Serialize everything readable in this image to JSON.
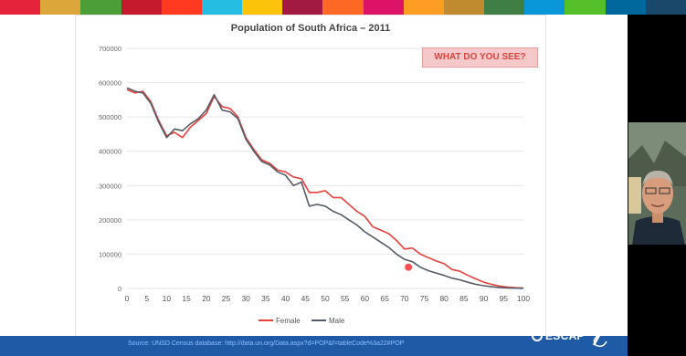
{
  "stripe_colors": [
    "#e5243b",
    "#dda63a",
    "#4c9f38",
    "#c5192d",
    "#ff3a21",
    "#26bde2",
    "#fcc30b",
    "#a21942",
    "#fd6925",
    "#dd1367",
    "#fd9d24",
    "#bf8b2e",
    "#3f7e44",
    "#0a97d9",
    "#56c02b",
    "#00689d",
    "#19486a"
  ],
  "slide": {
    "badge": "WHAT DO YOU SEE?",
    "source": "Source: UNSD Census database: http://data.un.org/Data.aspx?d=POP&f=tableCode%3a22#POP",
    "logo_text": "ESCAP"
  },
  "chart_data": {
    "type": "line",
    "title": "Population of South Africa – 2011",
    "ylim": [
      0,
      700000
    ],
    "xlim": [
      0,
      100
    ],
    "yticks": [
      0,
      100000,
      200000,
      300000,
      400000,
      500000,
      600000,
      700000
    ],
    "xticks": [
      0,
      5,
      10,
      15,
      20,
      25,
      30,
      35,
      40,
      45,
      50,
      55,
      60,
      65,
      70,
      75,
      80,
      85,
      90,
      95,
      100
    ],
    "legend_position": "bottom",
    "series": [
      {
        "name": "Female",
        "color": "#e8403a",
        "points": [
          [
            0,
            580000
          ],
          [
            2,
            570000
          ],
          [
            4,
            575000
          ],
          [
            6,
            545000
          ],
          [
            8,
            490000
          ],
          [
            10,
            445000
          ],
          [
            12,
            455000
          ],
          [
            14,
            440000
          ],
          [
            16,
            470000
          ],
          [
            18,
            490000
          ],
          [
            20,
            510000
          ],
          [
            22,
            560000
          ],
          [
            24,
            530000
          ],
          [
            26,
            525000
          ],
          [
            28,
            500000
          ],
          [
            30,
            440000
          ],
          [
            32,
            405000
          ],
          [
            34,
            375000
          ],
          [
            36,
            365000
          ],
          [
            38,
            345000
          ],
          [
            40,
            340000
          ],
          [
            42,
            325000
          ],
          [
            44,
            320000
          ],
          [
            46,
            280000
          ],
          [
            48,
            280000
          ],
          [
            50,
            285000
          ],
          [
            52,
            265000
          ],
          [
            54,
            265000
          ],
          [
            56,
            245000
          ],
          [
            58,
            225000
          ],
          [
            60,
            210000
          ],
          [
            62,
            180000
          ],
          [
            64,
            170000
          ],
          [
            66,
            160000
          ],
          [
            68,
            140000
          ],
          [
            70,
            115000
          ],
          [
            72,
            118000
          ],
          [
            74,
            100000
          ],
          [
            76,
            90000
          ],
          [
            78,
            80000
          ],
          [
            80,
            72000
          ],
          [
            82,
            55000
          ],
          [
            84,
            50000
          ],
          [
            86,
            38000
          ],
          [
            88,
            28000
          ],
          [
            90,
            18000
          ],
          [
            92,
            12000
          ],
          [
            94,
            7000
          ],
          [
            96,
            4000
          ],
          [
            98,
            2000
          ],
          [
            100,
            1000
          ]
        ]
      },
      {
        "name": "Male",
        "color": "#555b66",
        "points": [
          [
            0,
            585000
          ],
          [
            2,
            575000
          ],
          [
            4,
            570000
          ],
          [
            6,
            540000
          ],
          [
            8,
            485000
          ],
          [
            10,
            440000
          ],
          [
            12,
            465000
          ],
          [
            14,
            460000
          ],
          [
            16,
            480000
          ],
          [
            18,
            495000
          ],
          [
            20,
            520000
          ],
          [
            22,
            565000
          ],
          [
            24,
            520000
          ],
          [
            26,
            515000
          ],
          [
            28,
            495000
          ],
          [
            30,
            435000
          ],
          [
            32,
            400000
          ],
          [
            34,
            370000
          ],
          [
            36,
            360000
          ],
          [
            38,
            340000
          ],
          [
            40,
            330000
          ],
          [
            42,
            300000
          ],
          [
            44,
            310000
          ],
          [
            46,
            240000
          ],
          [
            48,
            245000
          ],
          [
            50,
            240000
          ],
          [
            52,
            225000
          ],
          [
            54,
            215000
          ],
          [
            56,
            200000
          ],
          [
            58,
            185000
          ],
          [
            60,
            165000
          ],
          [
            62,
            150000
          ],
          [
            64,
            135000
          ],
          [
            66,
            120000
          ],
          [
            68,
            100000
          ],
          [
            70,
            85000
          ],
          [
            72,
            78000
          ],
          [
            74,
            62000
          ],
          [
            76,
            52000
          ],
          [
            78,
            45000
          ],
          [
            80,
            38000
          ],
          [
            82,
            30000
          ],
          [
            84,
            25000
          ],
          [
            86,
            18000
          ],
          [
            88,
            12000
          ],
          [
            90,
            8000
          ],
          [
            92,
            5000
          ],
          [
            94,
            3000
          ],
          [
            96,
            1500
          ],
          [
            98,
            800
          ],
          [
            100,
            400
          ]
        ]
      }
    ]
  }
}
